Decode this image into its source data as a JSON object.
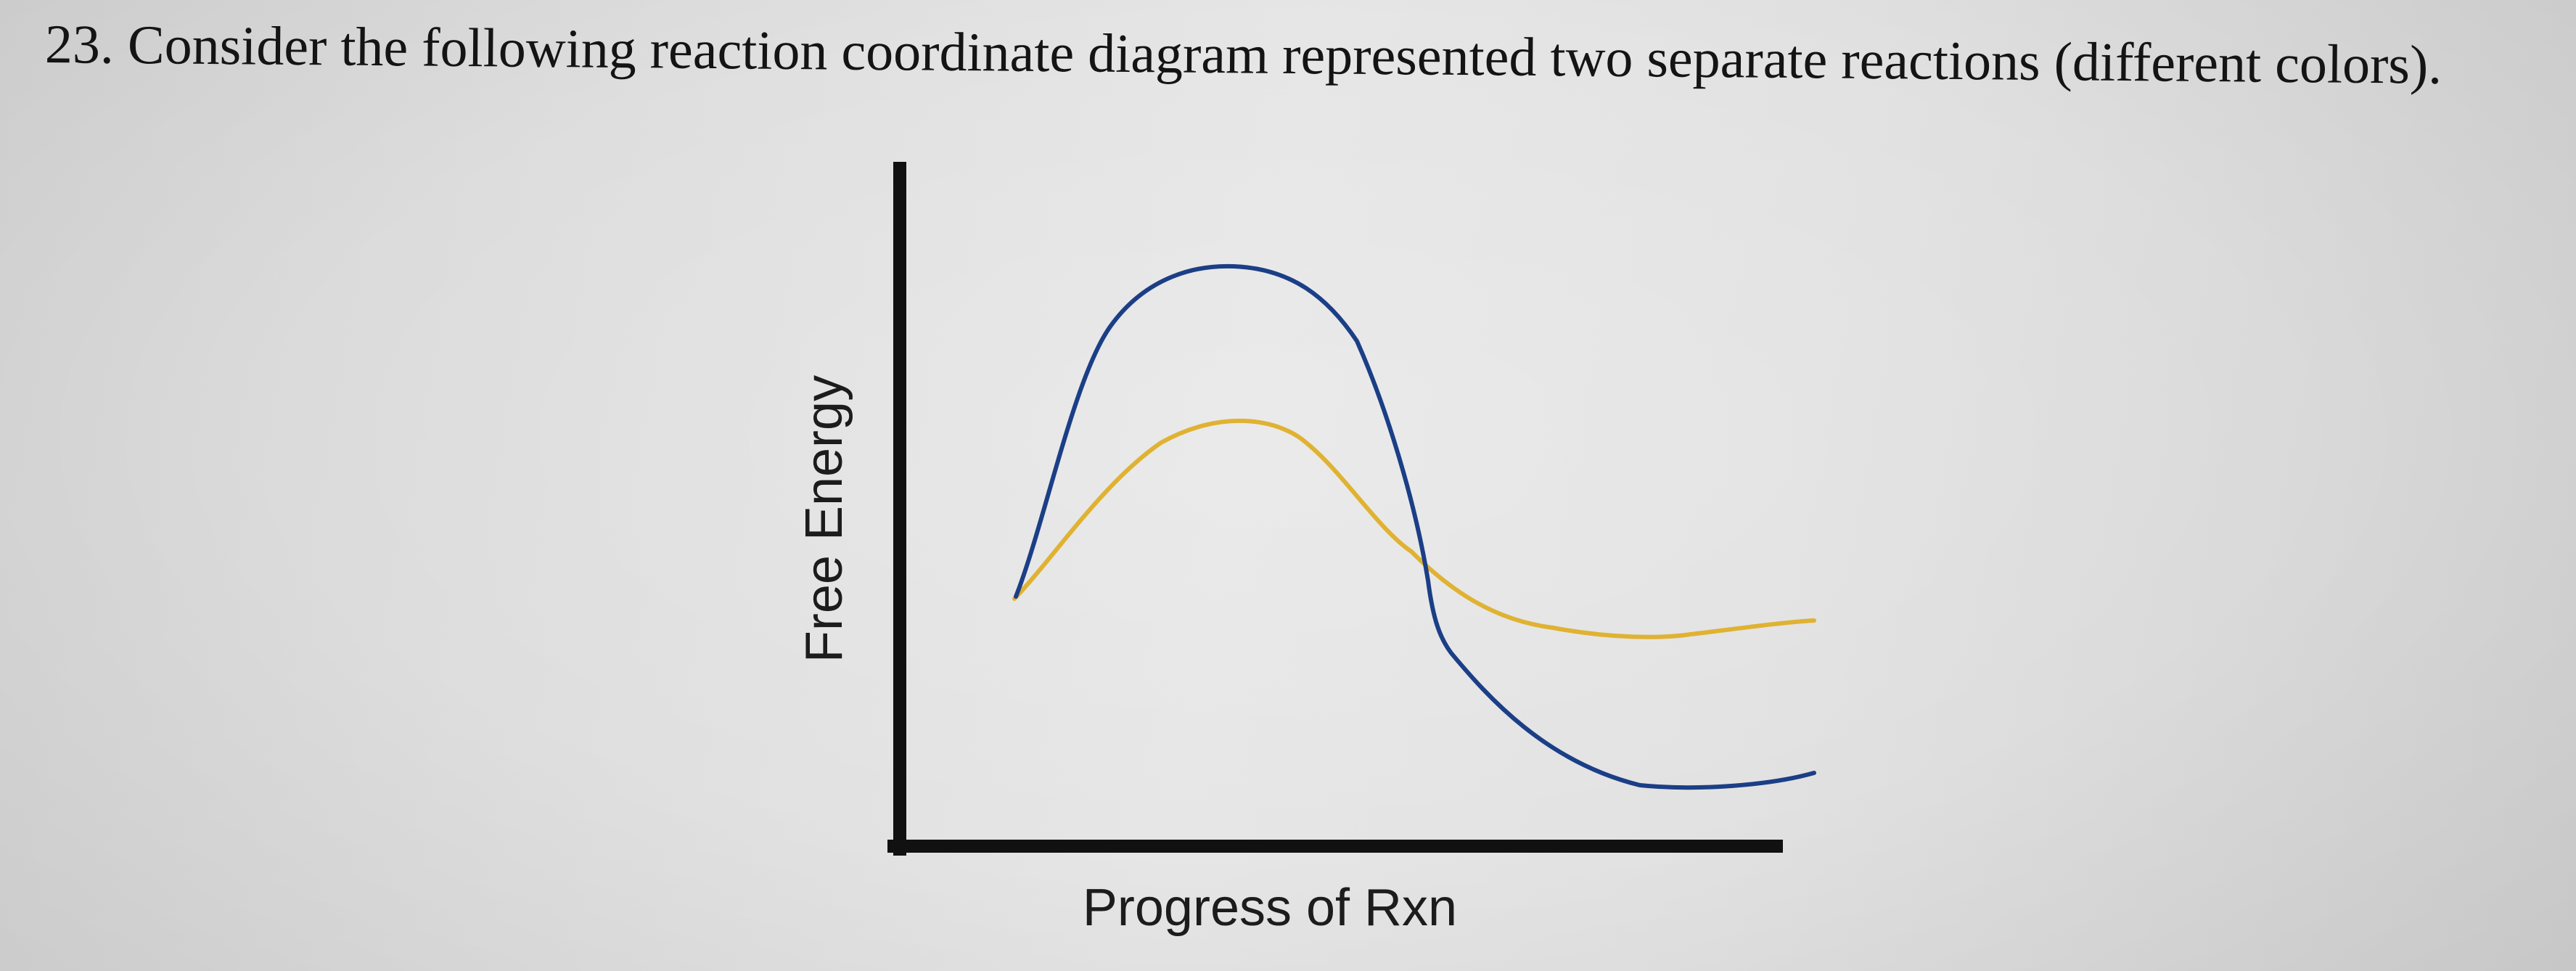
{
  "question": {
    "text": "23. Consider the following reaction coordinate diagram represented two separate reactions (different colors)."
  },
  "diagram": {
    "y_axis_label": "Free Energy",
    "x_axis_label": "Progress of Rxn",
    "curve_colors": {
      "blue": "#1b3f86",
      "yellow": "#e0b232"
    },
    "axis_color": "#111111"
  }
}
